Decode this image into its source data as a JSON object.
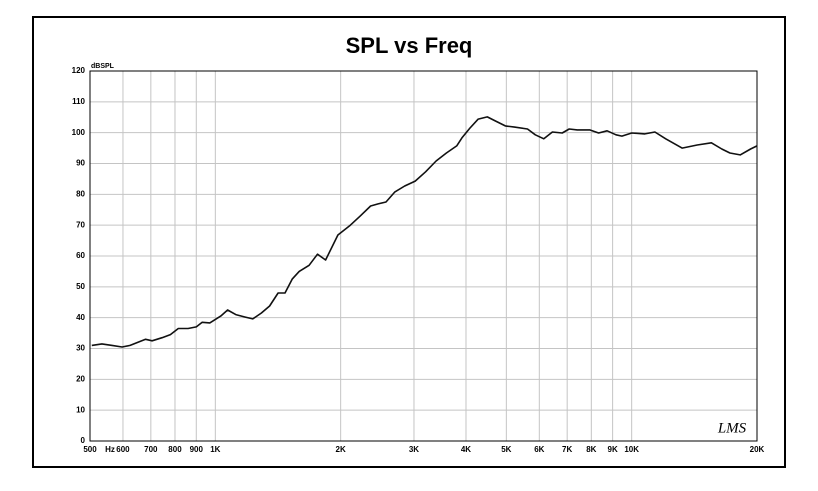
{
  "chart_data": {
    "type": "line",
    "title": "SPL vs Freq",
    "x_label": "Hz",
    "y_label": "dBSPL",
    "annotation": "LMS",
    "log_x": true,
    "grid": true,
    "series": [
      {
        "name": "SPL",
        "color": "#111111",
        "x": [
          505,
          534,
          565,
          597,
          624,
          680,
          705,
          745,
          780,
          815,
          860,
          900,
          930,
          970,
          1030,
          1070,
          1120,
          1180,
          1230,
          1290,
          1350,
          1415,
          1470,
          1530,
          1590,
          1680,
          1760,
          1840,
          1970,
          2110,
          2230,
          2360,
          2460,
          2570,
          2700,
          2850,
          3020,
          3200,
          3390,
          3590,
          3800,
          3910,
          4090,
          4280,
          4500,
          4700,
          4970,
          5230,
          5620,
          5870,
          6150,
          6450,
          6810,
          7080,
          7400,
          7930,
          8330,
          8730,
          9170,
          9475,
          10000,
          10760,
          11370,
          12070,
          13220,
          14370,
          15540,
          16460,
          17220,
          18230,
          19300,
          20000
        ],
        "values": [
          31,
          31.5,
          31,
          30.5,
          31,
          33,
          32.5,
          33.5,
          34.5,
          36.5,
          36.5,
          37,
          38.5,
          38.3,
          40.5,
          42.5,
          41,
          40.2,
          39.6,
          41.5,
          43.8,
          48,
          48,
          52.5,
          55,
          57,
          60.6,
          58.7,
          66.8,
          70,
          73,
          76.2,
          76.9,
          77.5,
          80.8,
          82.7,
          84.3,
          87.3,
          90.8,
          93.4,
          95.7,
          98.3,
          101.5,
          104.4,
          105.1,
          103.8,
          102.2,
          101.8,
          101.2,
          99.3,
          98,
          100.2,
          99.9,
          101.2,
          100.9,
          100.9,
          99.9,
          100.6,
          99.3,
          98.9,
          99.9,
          99.6,
          100.2,
          98,
          95,
          96,
          96.7,
          94.7,
          93.4,
          92.8,
          94.7,
          95.7
        ]
      }
    ],
    "xlim": [
      500,
      20000
    ],
    "xticks": [
      500,
      600,
      700,
      800,
      900,
      {
        "value": 1000,
        "label": "1K"
      },
      {
        "value": 2000,
        "label": "2K"
      },
      {
        "value": 3000,
        "label": "3K"
      },
      {
        "value": 4000,
        "label": "4K"
      },
      {
        "value": 5000,
        "label": "5K"
      },
      {
        "value": 6000,
        "label": "6K"
      },
      {
        "value": 7000,
        "label": "7K"
      },
      {
        "value": 8000,
        "label": "8K"
      },
      {
        "value": 9000,
        "label": "9K"
      },
      {
        "value": 10000,
        "label": "10K"
      },
      {
        "value": 20000,
        "label": "20K"
      }
    ],
    "ylim": [
      0,
      120
    ],
    "yticks": [
      0,
      10,
      20,
      30,
      40,
      50,
      60,
      70,
      80,
      90,
      100,
      110,
      120
    ]
  }
}
